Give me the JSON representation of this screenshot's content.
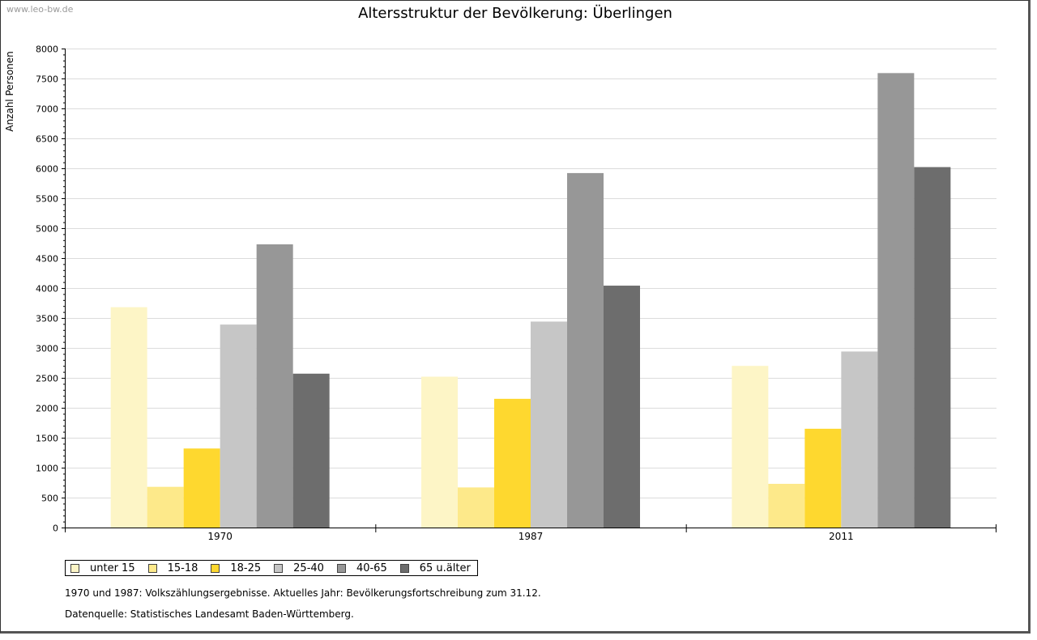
{
  "watermark": "www.leo-bw.de",
  "chart_data": {
    "type": "bar",
    "title": "Altersstruktur der Bevölkerung: Überlingen",
    "xlabel": "",
    "ylabel": "Anzahl Personen",
    "categories": [
      "1970",
      "1987",
      "2011"
    ],
    "ylim": [
      0,
      8000
    ],
    "yticks": [
      0,
      500,
      1000,
      1500,
      2000,
      2500,
      3000,
      3500,
      4000,
      4500,
      5000,
      5500,
      6000,
      6500,
      7000,
      7500,
      8000
    ],
    "grid": true,
    "legend_position": "bottom-left",
    "series": [
      {
        "name": "unter 15",
        "color": "#fdf5c6",
        "values": [
          3680,
          2520,
          2700
        ]
      },
      {
        "name": "15-18",
        "color": "#fde98a",
        "values": [
          680,
          670,
          730
        ]
      },
      {
        "name": "18-25",
        "color": "#fed82f",
        "values": [
          1320,
          2150,
          1650
        ]
      },
      {
        "name": "25-40",
        "color": "#c6c6c6",
        "values": [
          3390,
          3440,
          2940
        ]
      },
      {
        "name": "40-65",
        "color": "#979797",
        "values": [
          4730,
          5920,
          7590
        ]
      },
      {
        "name": "65 u.älter",
        "color": "#6d6d6d",
        "values": [
          2570,
          4040,
          6020
        ]
      }
    ]
  },
  "notes": {
    "line1": "1970 und 1987: Volkszählungsergebnisse. Aktuelles Jahr: Bevölkerungsfortschreibung zum 31.12.",
    "line2": "Datenquelle: Statistisches Landesamt Baden-Württemberg."
  }
}
